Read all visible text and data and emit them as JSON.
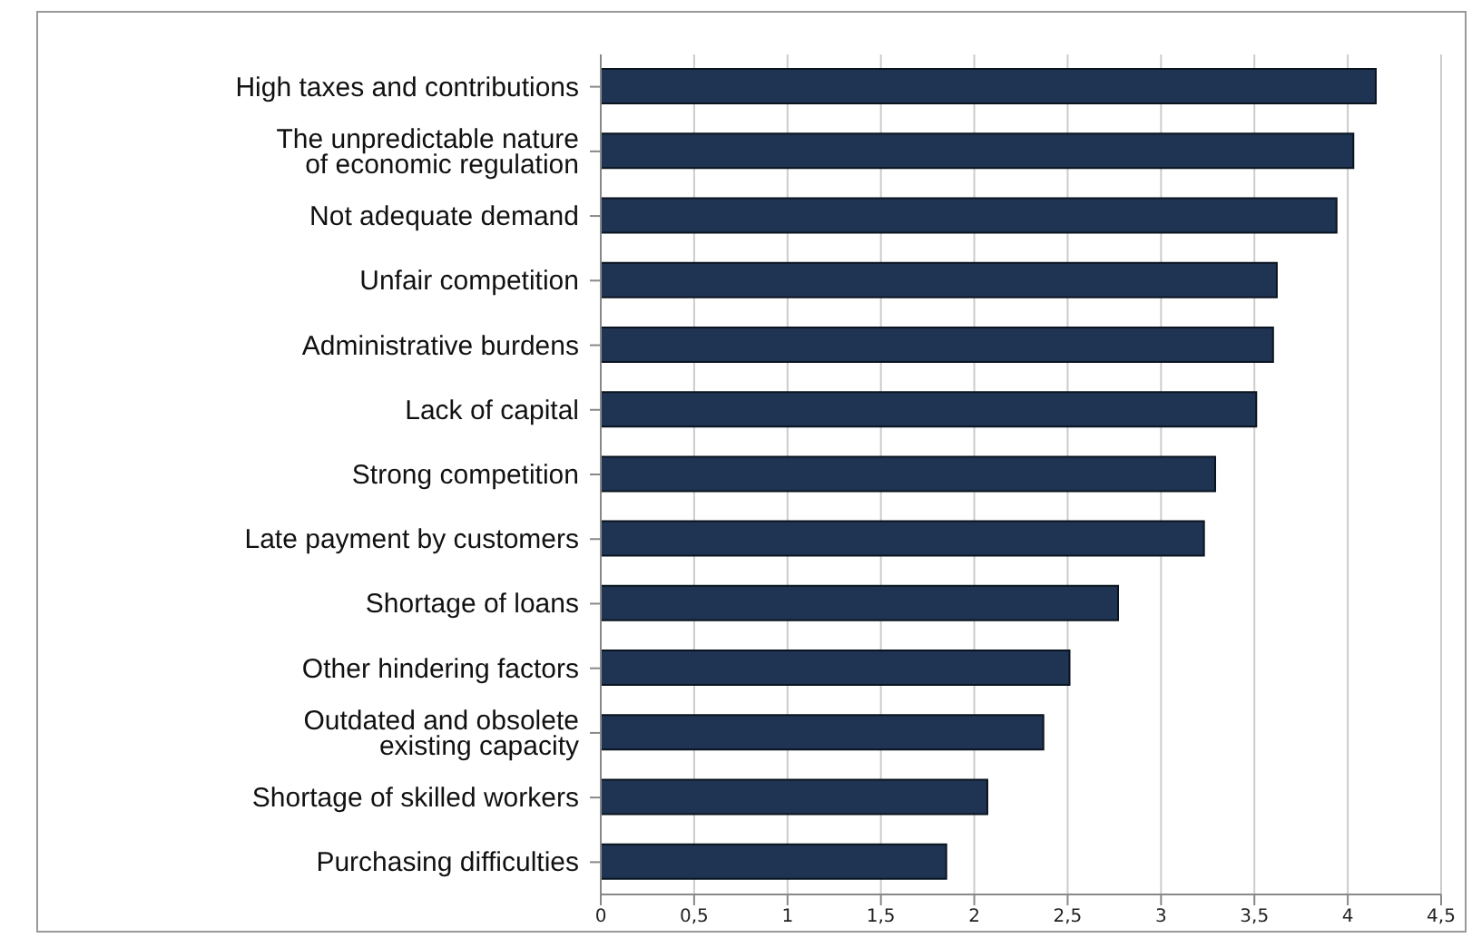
{
  "chart_data": {
    "type": "bar",
    "orientation": "horizontal",
    "categories": [
      "High taxes and contributions",
      "The unpredictable nature\nof economic regulation",
      "Not adequate demand",
      "Unfair competition",
      "Administrative burdens",
      "Lack of capital",
      "Strong competition",
      "Late payment by customers",
      "Shortage of loans",
      "Other hindering factors",
      "Outdated and obsolete\nexisting capacity",
      "Shortage of skilled workers",
      "Purchasing difficulties"
    ],
    "values": [
      4.15,
      4.03,
      3.94,
      3.62,
      3.6,
      3.51,
      3.29,
      3.23,
      2.77,
      2.51,
      2.37,
      2.07,
      1.85
    ],
    "color": "#1f3352",
    "xlim": [
      0,
      4.5
    ],
    "xticks": [
      0,
      {
        "value": 0.5,
        "label": "0,5"
      },
      1,
      {
        "value": 1.5,
        "label": "1,5"
      },
      2,
      {
        "value": 2.5,
        "label": "2,5"
      },
      3,
      {
        "value": 3.5,
        "label": "3,5"
      },
      4,
      {
        "value": 4.5,
        "label": "4,5"
      }
    ],
    "grid": "x",
    "legend": false
  }
}
